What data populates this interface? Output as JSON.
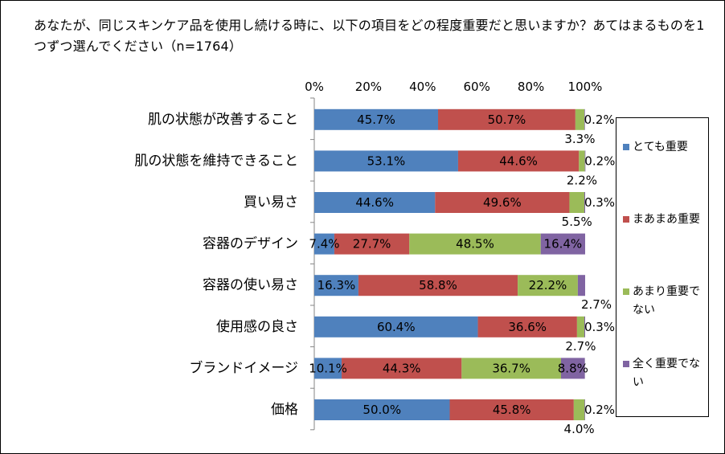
{
  "title": "あなたが、同じスキンケア品を使用し続ける時に、以下の項目をどの程度重要だと思いますか？あてはまるものを1つずつ選んでください（n=1764）",
  "chart_data": {
    "type": "bar",
    "orientation": "horizontal",
    "stacked": true,
    "percent": true,
    "xlim": [
      0,
      100
    ],
    "ticks": [
      "0%",
      "20%",
      "40%",
      "60%",
      "80%",
      "100%"
    ],
    "legend_position": "right",
    "categories": [
      "肌の状態が改善すること",
      "肌の状態を維持できること",
      "買い易さ",
      "容器のデザイン",
      "容器の使い易さ",
      "使用感の良さ",
      "ブランドイメージ",
      "価格"
    ],
    "series": [
      {
        "name": "とても重要",
        "color": "#4F81BD",
        "values": [
          45.7,
          53.1,
          44.6,
          7.4,
          16.3,
          60.4,
          10.1,
          50.0
        ],
        "labels": [
          "45.7%",
          "53.1%",
          "44.6%",
          "7.4%",
          "16.3%",
          "60.4%",
          "10.1%",
          "50.0%"
        ]
      },
      {
        "name": "まあまあ重要",
        "color": "#C0504D",
        "values": [
          50.7,
          44.6,
          49.6,
          27.7,
          58.8,
          36.6,
          44.3,
          45.8
        ],
        "labels": [
          "50.7%",
          "44.6%",
          "49.6%",
          "27.7%",
          "58.8%",
          "36.6%",
          "44.3%",
          "45.8%"
        ]
      },
      {
        "name": "あまり重要でない",
        "color": "#9BBB59",
        "values": [
          3.3,
          2.2,
          5.5,
          48.5,
          22.2,
          2.7,
          36.7,
          4.0
        ],
        "labels": [
          "3.3%",
          "2.2%",
          "5.5%",
          "48.5%",
          "22.2%",
          "2.7%",
          "36.7%",
          "4.0%"
        ]
      },
      {
        "name": "全く重要でない",
        "color": "#8064A2",
        "values": [
          0.2,
          0.2,
          0.3,
          16.4,
          2.7,
          0.3,
          8.8,
          0.2
        ],
        "labels": [
          "0.2%",
          "0.2%",
          "0.3%",
          "16.4%",
          "2.7%",
          "0.3%",
          "8.8%",
          "0.2%"
        ]
      }
    ]
  }
}
